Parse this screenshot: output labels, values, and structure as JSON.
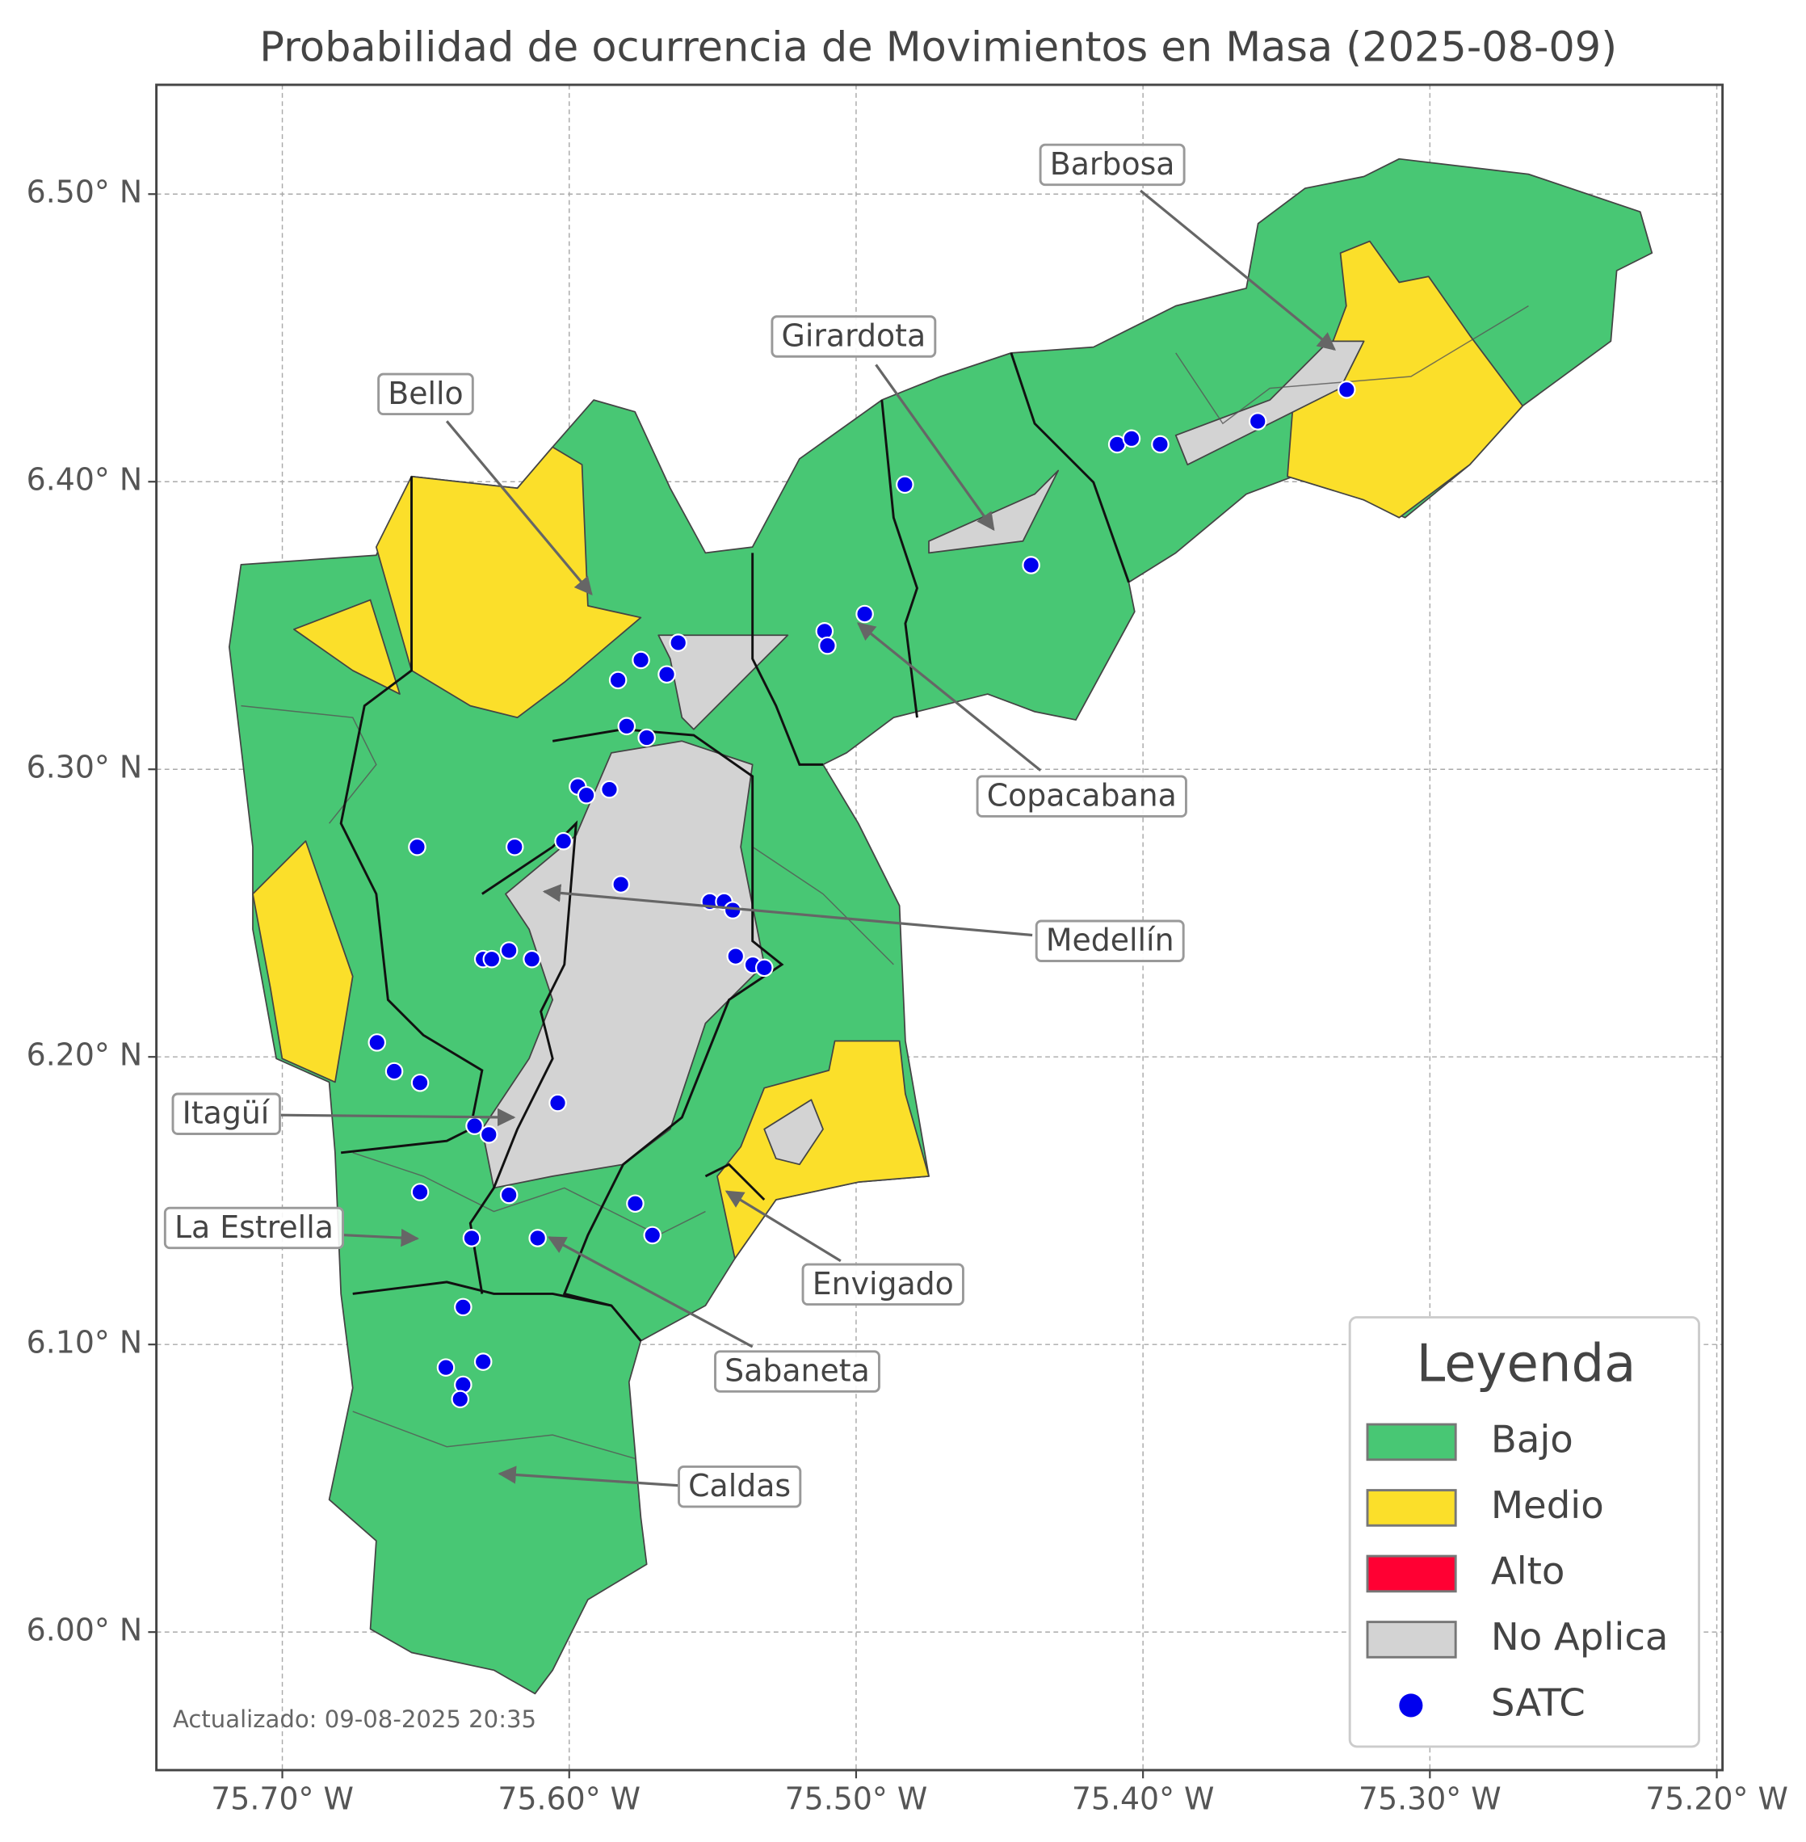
{
  "chart_data": {
    "type": "map",
    "title": "Probabilidad de ocurrencia de Movimientos en Masa (2025-08-09)",
    "xlim": [
      -75.7439,
      -75.198
    ],
    "ylim": [
      5.952,
      6.538
    ],
    "xticks": [
      {
        "value": -75.7,
        "label": "75.70° W"
      },
      {
        "value": -75.6,
        "label": "75.60° W"
      },
      {
        "value": -75.5,
        "label": "75.50° W"
      },
      {
        "value": -75.4,
        "label": "75.40° W"
      },
      {
        "value": -75.3,
        "label": "75.30° W"
      },
      {
        "value": -75.2,
        "label": "75.20° W"
      }
    ],
    "yticks": [
      {
        "value": 6.0,
        "label": "6.00° N"
      },
      {
        "value": 6.1,
        "label": "6.10° N"
      },
      {
        "value": 6.2,
        "label": "6.20° N"
      },
      {
        "value": 6.3,
        "label": "6.30° N"
      },
      {
        "value": 6.4,
        "label": "6.40° N"
      },
      {
        "value": 6.5,
        "label": "6.50° N"
      }
    ],
    "grid": true,
    "annotations": [
      "Barbosa",
      "Girardota",
      "Bello",
      "Copacabana",
      "Medellín",
      "Itagüí",
      "La Estrella",
      "Envigado",
      "Sabaneta",
      "Caldas"
    ],
    "legend": {
      "title": "Leyenda",
      "items": [
        {
          "label": "Bajo",
          "color": "#48c774"
        },
        {
          "label": "Medio",
          "color": "#fbdf2a"
        },
        {
          "label": "Alto",
          "color": "#ff0033"
        },
        {
          "label": "No Aplica",
          "color": "#d3d3d3"
        },
        {
          "label": "SATC",
          "color": "#0000ee"
        }
      ]
    },
    "points": {
      "name": "SATC",
      "color": "#0000ee",
      "lon": [
        -75.329,
        -75.36,
        -75.409,
        -75.404,
        -75.394,
        -75.483,
        -75.439,
        -75.497,
        -75.511,
        -75.51,
        -75.562,
        -75.575,
        -75.566,
        -75.583,
        -75.58,
        -75.573,
        -75.597,
        -75.594,
        -75.586,
        -75.653,
        -75.619,
        -75.602,
        -75.582,
        -75.551,
        -75.546,
        -75.543,
        -75.542,
        -75.536,
        -75.532,
        -75.63,
        -75.627,
        -75.621,
        -75.613,
        -75.667,
        -75.661,
        -75.652,
        -75.604,
        -75.633,
        -75.628,
        -75.652,
        -75.621,
        -75.577,
        -75.571,
        -75.634,
        -75.611,
        -75.637,
        -75.643,
        -75.63,
        -75.637,
        -75.638
      ],
      "lat": [
        6.432,
        6.421,
        6.413,
        6.415,
        6.413,
        6.399,
        6.371,
        6.354,
        6.348,
        6.343,
        6.344,
        6.338,
        6.333,
        6.331,
        6.315,
        6.311,
        6.294,
        6.291,
        6.293,
        6.273,
        6.273,
        6.275,
        6.26,
        6.254,
        6.254,
        6.251,
        6.235,
        6.232,
        6.231,
        6.234,
        6.234,
        6.237,
        6.234,
        6.205,
        6.195,
        6.191,
        6.184,
        6.176,
        6.173,
        6.153,
        6.152,
        6.149,
        6.138,
        6.137,
        6.137,
        6.113,
        6.092,
        6.094,
        6.086,
        6.081
      ]
    },
    "footnote": "Actualizado: 09-08-2025 20:35"
  }
}
